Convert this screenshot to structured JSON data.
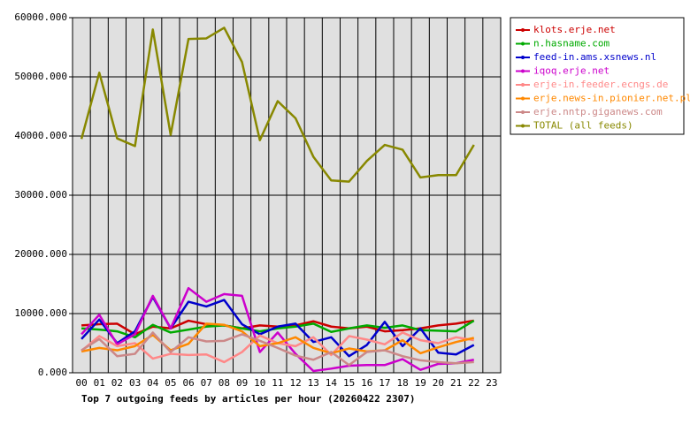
{
  "chart_data": {
    "type": "line",
    "title": "Top 7 outgoing feeds by articles per hour (20260422 2307)",
    "categories": [
      "00",
      "01",
      "02",
      "03",
      "04",
      "05",
      "06",
      "07",
      "08",
      "09",
      "10",
      "11",
      "12",
      "13",
      "14",
      "15",
      "16",
      "17",
      "18",
      "19",
      "20",
      "21",
      "22",
      "23"
    ],
    "ylim": [
      0,
      60000
    ],
    "yticks": [
      {
        "value": 0,
        "label": "0.000"
      },
      {
        "value": 10000,
        "label": "10000.000"
      },
      {
        "value": 20000,
        "label": "20000.000"
      },
      {
        "value": 30000,
        "label": "30000.000"
      },
      {
        "value": 40000,
        "label": "40000.000"
      },
      {
        "value": 50000,
        "label": "50000.000"
      },
      {
        "value": 60000,
        "label": "60000.000"
      }
    ],
    "grid": true,
    "legend": "top-right",
    "series": [
      {
        "name": "klots.erje.net",
        "color": "#cc0000",
        "values": [
          8000,
          8200,
          8300,
          6500,
          7800,
          7500,
          8800,
          8200,
          8000,
          7500,
          8000,
          7800,
          8000,
          8700,
          7800,
          7500,
          7800,
          7000,
          7200,
          7500,
          8000,
          8300,
          8800,
          null
        ]
      },
      {
        "name": "n.hasname.com",
        "color": "#00aa00",
        "values": [
          7500,
          7300,
          7000,
          6000,
          8100,
          6800,
          7300,
          7800,
          8000,
          7500,
          7000,
          7500,
          7800,
          8300,
          6900,
          7500,
          8000,
          7600,
          8000,
          7200,
          7100,
          7000,
          8800,
          null
        ]
      },
      {
        "name": "feed-in.ams.xsnews.nl",
        "color": "#0000cc",
        "values": [
          5700,
          9000,
          5000,
          7000,
          12800,
          7500,
          12000,
          11200,
          12300,
          8200,
          6500,
          7800,
          8300,
          5200,
          6000,
          2800,
          4700,
          8600,
          4500,
          7500,
          3400,
          3100,
          4700,
          null
        ]
      },
      {
        "name": "iqoq.erje.net",
        "color": "#cc00cc",
        "values": [
          6500,
          9800,
          4800,
          6500,
          13000,
          7500,
          14300,
          12000,
          13300,
          13000,
          3500,
          6800,
          3200,
          300,
          700,
          1200,
          1300,
          1300,
          2300,
          500,
          1500,
          1600,
          2200,
          null
        ]
      },
      {
        "name": "erje-in.feeder.ecngs.de",
        "color": "#ff8888",
        "values": [
          3700,
          6200,
          4500,
          5000,
          2400,
          3200,
          3000,
          3100,
          1800,
          3500,
          6300,
          5000,
          4500,
          6000,
          3000,
          6200,
          5600,
          4800,
          6800,
          5500,
          5000,
          6000,
          5500,
          null
        ]
      },
      {
        "name": "erje.news-in.pionier.net.pl",
        "color": "#ff8800",
        "values": [
          3600,
          4200,
          3800,
          4500,
          6400,
          3800,
          4900,
          8300,
          8100,
          7000,
          4500,
          5000,
          6000,
          4200,
          3300,
          4100,
          3600,
          3800,
          5500,
          3300,
          4300,
          5200,
          5900,
          null
        ]
      },
      {
        "name": "erje.nntp.giganews.com",
        "color": "#cc8888",
        "values": [
          3800,
          5700,
          2800,
          3200,
          6800,
          3500,
          6000,
          5300,
          5400,
          6500,
          5400,
          4200,
          2900,
          2200,
          3500,
          1300,
          3500,
          3800,
          2800,
          2100,
          1800,
          1600,
          1800,
          null
        ]
      },
      {
        "name": "TOTAL (all feeds)",
        "color": "#888800",
        "values": [
          39500,
          50700,
          39600,
          38300,
          58000,
          40200,
          56400,
          56500,
          58300,
          52500,
          39300,
          45900,
          43000,
          36500,
          32500,
          32300,
          35800,
          38500,
          37700,
          33000,
          33400,
          33400,
          38500,
          null
        ]
      }
    ]
  }
}
